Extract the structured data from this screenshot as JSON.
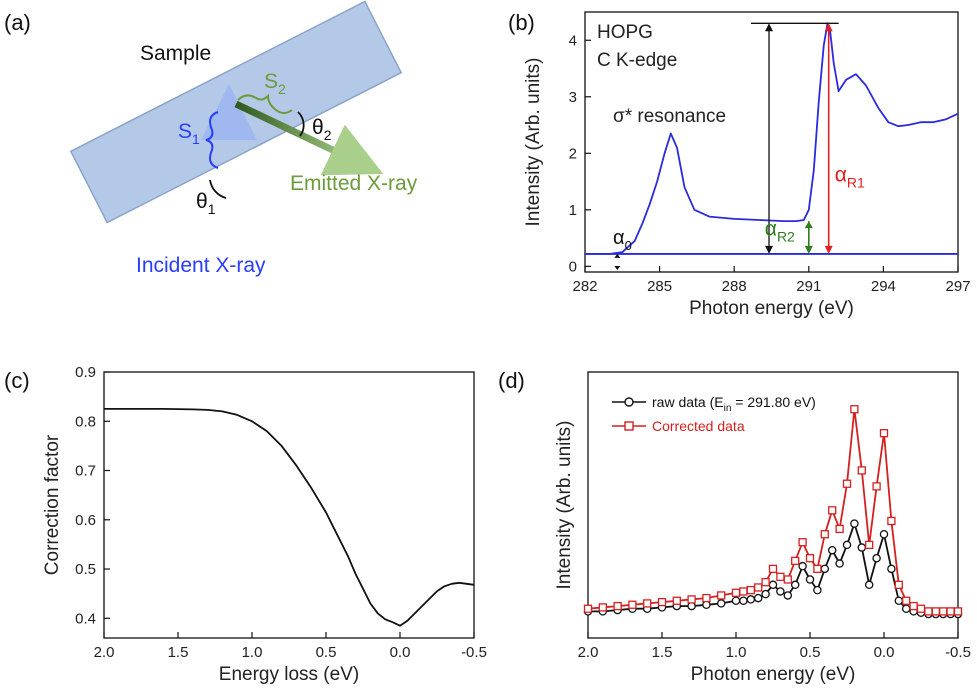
{
  "panels": {
    "a": {
      "panel_label": "(a)",
      "sample_label": "Sample",
      "s1": "S",
      "s1_sub": "1",
      "s2": "S",
      "s2_sub": "2",
      "theta1": "θ",
      "theta1_sub": "1",
      "theta2": "θ",
      "theta2_sub": "2",
      "incident_label": "Incident X-ray",
      "emitted_label": "Emitted X-ray",
      "colors": {
        "incident": "#2a3cff",
        "emitted": "#6b9b3a",
        "sample_fill": "#b4c9e8",
        "sample_stroke": "#8aa3c9"
      }
    },
    "b": {
      "panel_label": "(b)"
    },
    "c": {
      "panel_label": "(c)"
    },
    "d": {
      "panel_label": "(d)"
    }
  },
  "chart_data": [
    {
      "id": "b",
      "type": "line",
      "xlabel": "Photon energy (eV)",
      "ylabel": "Intensity (Arb. units)",
      "xlim": [
        282,
        297
      ],
      "ylim": [
        -0.1,
        4.5
      ],
      "xticks": [
        "282",
        "285",
        "288",
        "291",
        "294",
        "297"
      ],
      "yticks": [
        "0",
        "1",
        "2",
        "3",
        "4"
      ],
      "grid": false,
      "annotations": {
        "line1": "HOPG",
        "line2": "C K-edge",
        "resonance": "σ* resonance",
        "alpha0": "α",
        "alpha0_sub": "0",
        "alphaR1": "α",
        "alphaR1_sub": "R1",
        "alphaR2": "α",
        "alphaR2_sub": "R2"
      },
      "baseline": 0.22,
      "arrows": {
        "total_x": 289.4,
        "total_top": 4.3,
        "r1_x": 291.8,
        "r2_x": 291.0,
        "r2_top": 0.8,
        "alpha0_x": 283.3
      },
      "colors": {
        "curve": "#2a2adf",
        "r1": "#e02020",
        "r2": "#2e7d1e"
      },
      "series": [
        {
          "color": "#2a2adf",
          "x": [
            282,
            283,
            283.5,
            284.0,
            284.3,
            284.6,
            284.9,
            285.2,
            285.45,
            285.7,
            286.0,
            286.4,
            287.0,
            288,
            289,
            290,
            290.5,
            290.8,
            291.0,
            291.2,
            291.4,
            291.6,
            291.75,
            291.85,
            292.0,
            292.2,
            292.5,
            292.9,
            293.3,
            293.8,
            294.2,
            294.6,
            295.0,
            295.5,
            296.0,
            296.5,
            297
          ],
          "y": [
            0.22,
            0.22,
            0.25,
            0.45,
            0.75,
            1.1,
            1.5,
            2.0,
            2.35,
            2.1,
            1.4,
            1.0,
            0.88,
            0.84,
            0.82,
            0.8,
            0.8,
            0.82,
            1.0,
            1.7,
            2.9,
            3.9,
            4.3,
            4.2,
            3.6,
            3.1,
            3.3,
            3.4,
            3.2,
            2.8,
            2.55,
            2.48,
            2.5,
            2.55,
            2.55,
            2.6,
            2.7
          ]
        }
      ]
    },
    {
      "id": "c",
      "type": "line",
      "xlabel": "Energy loss (eV)",
      "ylabel": "Correction factor",
      "xlim": [
        2.0,
        -0.5
      ],
      "ylim": [
        0.36,
        0.9
      ],
      "xticks": [
        "2.0",
        "1.5",
        "1.0",
        "0.5",
        "0.0",
        "-0.5"
      ],
      "yticks": [
        "0.4",
        "0.5",
        "0.6",
        "0.7",
        "0.8",
        "0.9"
      ],
      "grid": false,
      "series": [
        {
          "color": "#111111",
          "x": [
            2.0,
            1.8,
            1.6,
            1.4,
            1.3,
            1.2,
            1.1,
            1.0,
            0.9,
            0.8,
            0.7,
            0.6,
            0.5,
            0.45,
            0.4,
            0.35,
            0.3,
            0.25,
            0.2,
            0.15,
            0.1,
            0.05,
            0.0,
            -0.05,
            -0.1,
            -0.15,
            -0.2,
            -0.25,
            -0.3,
            -0.35,
            -0.4,
            -0.5
          ],
          "y": [
            0.825,
            0.825,
            0.825,
            0.824,
            0.823,
            0.82,
            0.813,
            0.8,
            0.78,
            0.75,
            0.71,
            0.665,
            0.615,
            0.585,
            0.555,
            0.525,
            0.49,
            0.46,
            0.43,
            0.41,
            0.398,
            0.392,
            0.385,
            0.395,
            0.41,
            0.425,
            0.44,
            0.455,
            0.465,
            0.47,
            0.472,
            0.468
          ]
        }
      ]
    },
    {
      "id": "d",
      "type": "line",
      "xlabel": "Photon energy (eV)",
      "ylabel": "Intensity (Arb. units)",
      "xlim": [
        2.0,
        -0.5
      ],
      "ylim": [
        0,
        1.0
      ],
      "xticks": [
        "2.0",
        "1.5",
        "1.0",
        "0.5",
        "0.0",
        "-0.5"
      ],
      "yticks": [],
      "grid": false,
      "legend": {
        "placement": "top-left",
        "raw_label": "raw data (E",
        "raw_sub": "in",
        "raw_tail": " = 291.80 eV)",
        "corrected_label": "Corrected data"
      },
      "series": [
        {
          "name": "raw data (Ein = 291.80 eV)",
          "marker": "circle",
          "color": "#111111",
          "x": [
            2.0,
            1.9,
            1.8,
            1.7,
            1.6,
            1.5,
            1.4,
            1.3,
            1.2,
            1.1,
            1.0,
            0.95,
            0.9,
            0.85,
            0.8,
            0.75,
            0.7,
            0.65,
            0.6,
            0.55,
            0.5,
            0.45,
            0.4,
            0.35,
            0.3,
            0.25,
            0.2,
            0.15,
            0.1,
            0.05,
            0.0,
            -0.05,
            -0.1,
            -0.15,
            -0.2,
            -0.25,
            -0.3,
            -0.35,
            -0.4,
            -0.45,
            -0.5
          ],
          "y": [
            0.1,
            0.1,
            0.105,
            0.11,
            0.11,
            0.115,
            0.12,
            0.12,
            0.125,
            0.13,
            0.14,
            0.14,
            0.145,
            0.15,
            0.165,
            0.2,
            0.175,
            0.16,
            0.2,
            0.27,
            0.22,
            0.18,
            0.26,
            0.33,
            0.28,
            0.35,
            0.43,
            0.34,
            0.2,
            0.3,
            0.39,
            0.26,
            0.14,
            0.11,
            0.1,
            0.095,
            0.09,
            0.09,
            0.09,
            0.09,
            0.09
          ]
        },
        {
          "name": "Corrected data",
          "marker": "square",
          "color": "#d42020",
          "x": [
            2.0,
            1.9,
            1.8,
            1.7,
            1.6,
            1.5,
            1.4,
            1.3,
            1.2,
            1.1,
            1.0,
            0.95,
            0.9,
            0.85,
            0.8,
            0.75,
            0.7,
            0.65,
            0.6,
            0.55,
            0.5,
            0.45,
            0.4,
            0.35,
            0.3,
            0.25,
            0.2,
            0.15,
            0.1,
            0.05,
            0.0,
            -0.05,
            -0.1,
            -0.15,
            -0.2,
            -0.25,
            -0.3,
            -0.35,
            -0.4,
            -0.45,
            -0.5
          ],
          "y": [
            0.11,
            0.115,
            0.12,
            0.125,
            0.13,
            0.135,
            0.14,
            0.145,
            0.15,
            0.16,
            0.17,
            0.175,
            0.18,
            0.19,
            0.21,
            0.26,
            0.23,
            0.22,
            0.29,
            0.36,
            0.3,
            0.26,
            0.39,
            0.48,
            0.41,
            0.58,
            0.86,
            0.63,
            0.35,
            0.57,
            0.77,
            0.44,
            0.2,
            0.14,
            0.12,
            0.11,
            0.1,
            0.1,
            0.1,
            0.1,
            0.1
          ]
        }
      ]
    }
  ]
}
